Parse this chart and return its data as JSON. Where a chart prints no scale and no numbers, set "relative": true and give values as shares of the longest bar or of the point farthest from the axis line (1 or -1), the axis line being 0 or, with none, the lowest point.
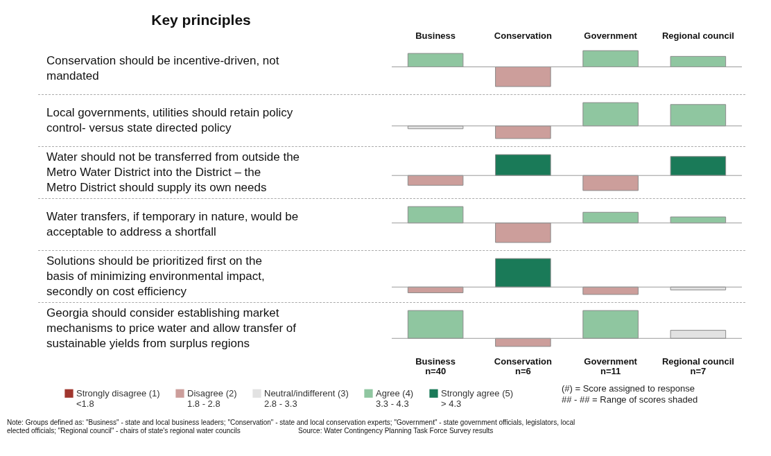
{
  "chart_data": [
    {
      "type": "bar",
      "relative": true,
      "stacked": true,
      "tick_labels": "x",
      "ylabel": "Conservation should be incentive-driven, not mandated",
      "annotations": [
        "Key principles"
      ],
      "categories": [
        "Business",
        "Conservation",
        "Government",
        "Regional council"
      ],
      "series": [
        {
          "color": "#8fc6a0",
          "values": [
            0.68,
            null,
            0.82,
            0.53
          ]
        },
        {
          "color": "#cc9e9b",
          "values": [
            null,
            -1,
            null,
            null
          ]
        }
      ]
    },
    {
      "type": "bar",
      "relative": true,
      "stacked": true,
      "tick_labels": false,
      "ylabel": "Local governments, utilities should retain policy control- versus state directed policy",
      "categories": [
        null,
        null,
        null,
        null
      ],
      "series": [
        {
          "color": "#e2e2e2",
          "values": [
            -0.12,
            null,
            null,
            null
          ]
        },
        {
          "color": "#cc9e9b",
          "values": [
            null,
            -0.54,
            null,
            null
          ]
        },
        {
          "color": "#8fc6a0",
          "values": [
            null,
            null,
            1,
            0.92
          ]
        }
      ]
    },
    {
      "type": "bar",
      "relative": true,
      "stacked": true,
      "tick_labels": false,
      "ylabel": "Water should not be transferred from outside the Metro Water District into the District – the Metro District should supply its own needs",
      "categories": [
        null,
        null,
        null,
        null
      ],
      "series": [
        {
          "color": "#cc9e9b",
          "values": [
            -0.47,
            null,
            -0.72,
            null
          ]
        },
        {
          "color": "#1a7a58",
          "values": [
            null,
            1,
            null,
            0.91
          ]
        }
      ]
    },
    {
      "type": "bar",
      "relative": true,
      "stacked": true,
      "tick_labels": false,
      "ylabel": "Water transfers, if temporary in nature, would be acceptable to address a shortfall",
      "categories": [
        null,
        null,
        null,
        null
      ],
      "series": [
        {
          "color": "#8fc6a0",
          "values": [
            0.84,
            null,
            0.55,
            0.31
          ]
        },
        {
          "color": "#cc9e9b",
          "values": [
            null,
            -1,
            null,
            null
          ]
        }
      ]
    },
    {
      "type": "bar",
      "relative": true,
      "stacked": true,
      "tick_labels": false,
      "ylabel": "Solutions should be prioritized first on the basis of minimizing environmental impact, secondly on cost efficiency",
      "categories": [
        null,
        null,
        null,
        null
      ],
      "series": [
        {
          "color": "#cc9e9b",
          "values": [
            -0.2,
            null,
            -0.26,
            null
          ]
        },
        {
          "color": "#1a7a58",
          "values": [
            null,
            1,
            null,
            null
          ]
        },
        {
          "color": "#e2e2e2",
          "values": [
            null,
            null,
            null,
            -0.1
          ]
        }
      ]
    },
    {
      "type": "bar",
      "relative": true,
      "stacked": true,
      "tick_labels": "x",
      "legend": "bottom",
      "ylabel": "Georgia should consider establishing market mechanisms to price water and allow transfer of sustainable yields from surplus regions",
      "categories": [
        "Business",
        "Conservation",
        "Government",
        "Regional council"
      ],
      "series": [
        {
          "name": "Strongly disagree (1)\n<1.8",
          "color": "#a0362e",
          "values": [
            null,
            null,
            null,
            null
          ]
        },
        {
          "name": "Disagree (2)\n1.8 - 2.8",
          "color": "#cc9e9b",
          "values": [
            null,
            -0.29,
            null,
            null
          ]
        },
        {
          "name": "Neutral/indifferent (3)\n2.8 - 3.3",
          "color": "#e2e2e2",
          "values": [
            null,
            null,
            null,
            0.29
          ]
        },
        {
          "name": "Agree (4)\n3.3 - 4.3",
          "color": "#8fc6a0",
          "values": [
            1,
            null,
            1,
            null
          ]
        },
        {
          "name": "Strongly agree (5)\n> 4.3",
          "color": "#1a7a58",
          "values": [
            null,
            null,
            null,
            null
          ]
        }
      ],
      "annotations": [
        "n=40",
        "n=6",
        "n=11",
        "n=7",
        "(#) = Score assigned to response",
        "## - ## = Range of scores shaded",
        "Note: Groups defined as: \"Business\" - state and local business leaders; \"Conservation\" - state and local conservation experts; \"Government\" - state government officials, legislators, local elected officials; \"Regional council\" - chairs of state's regional water councils",
        "Source: Water Contingency Planning Task Force Survey results"
      ]
    }
  ]
}
